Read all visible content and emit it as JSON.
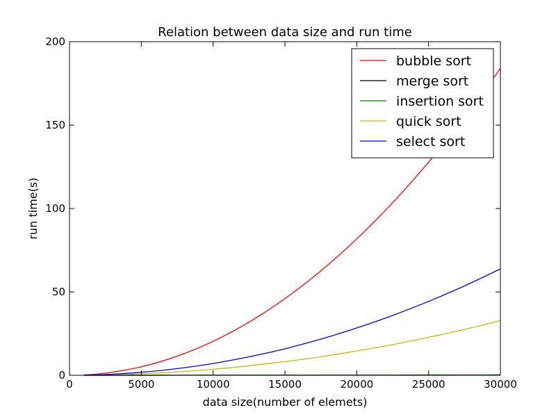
{
  "chart_data": {
    "type": "line",
    "title": "Relation between data size and run time",
    "xlabel": "data size(number of elemets)",
    "ylabel": "run time(s)",
    "xlim": [
      0,
      30000
    ],
    "ylim": [
      0,
      200
    ],
    "x_ticks": [
      0,
      5000,
      10000,
      15000,
      20000,
      25000,
      30000
    ],
    "y_ticks": [
      0,
      50,
      100,
      150,
      200
    ],
    "x_tick_labels": [
      "0",
      "5000",
      "10000",
      "15000",
      "20000",
      "25000",
      "30000"
    ],
    "y_tick_labels": [
      "0",
      "50",
      "100",
      "150",
      "200"
    ],
    "grid": false,
    "legend_position": "top-right",
    "x": [
      1000,
      2500,
      5000,
      7500,
      10000,
      12500,
      15000,
      17500,
      20000,
      22500,
      25000,
      27500,
      30000
    ],
    "series": [
      {
        "name": "bubble sort",
        "color": "#ff0000",
        "values": [
          0.2,
          1.3,
          5.1,
          11.5,
          20.4,
          31.9,
          46.0,
          62.6,
          81.8,
          103.5,
          127.8,
          154.6,
          184.0
        ]
      },
      {
        "name": "merge sort",
        "color": "#000000",
        "values": [
          0.01,
          0.02,
          0.03,
          0.05,
          0.07,
          0.09,
          0.11,
          0.13,
          0.15,
          0.17,
          0.19,
          0.21,
          0.23
        ]
      },
      {
        "name": "insertion sort",
        "color": "#008000",
        "values": [
          0.01,
          0.02,
          0.03,
          0.04,
          0.05,
          0.06,
          0.07,
          0.08,
          0.09,
          0.1,
          0.11,
          0.12,
          0.13
        ]
      },
      {
        "name": "quick sort",
        "color": "#bfbf00",
        "values": [
          0.04,
          0.23,
          0.9,
          2.0,
          3.6,
          5.7,
          8.2,
          11.1,
          14.6,
          18.4,
          22.8,
          27.5,
          32.8
        ]
      },
      {
        "name": "select sort",
        "color": "#0000ff",
        "values": [
          0.07,
          0.44,
          1.8,
          4.0,
          7.1,
          11.1,
          15.9,
          21.7,
          28.4,
          35.9,
          44.3,
          53.6,
          63.8
        ]
      }
    ]
  }
}
